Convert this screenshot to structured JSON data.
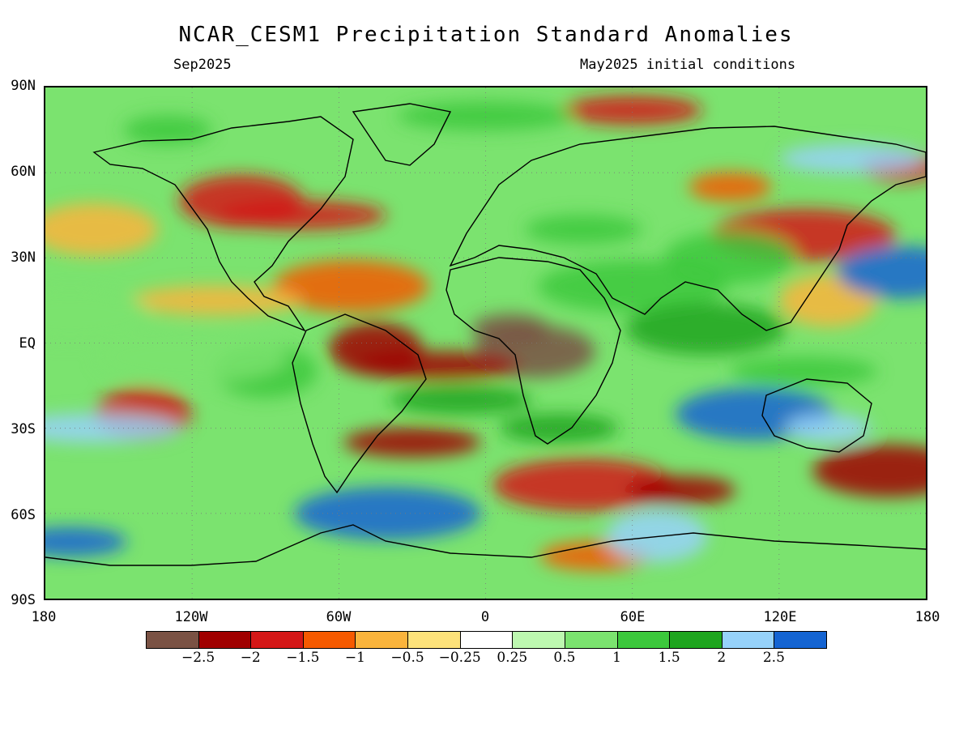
{
  "title": "NCAR_CESM1 Precipitation Standard Anomalies",
  "subtitle_left": "Sep2025",
  "subtitle_right": "May2025 initial conditions",
  "lat_labels": [
    "90N",
    "60N",
    "30N",
    "EQ",
    "30S",
    "60S",
    "90S"
  ],
  "lon_labels": [
    "180",
    "120W",
    "60W",
    "0",
    "60E",
    "120E",
    "180"
  ],
  "colorbar": {
    "colors": [
      "#7a5244",
      "#a00000",
      "#d41717",
      "#f55a00",
      "#fab43c",
      "#fde27a",
      "#ffffff",
      "#bdf8b0",
      "#7be36f",
      "#3cc83c",
      "#1ea51e",
      "#96d2fa",
      "#1464d2"
    ],
    "labels": [
      "−2.5",
      "−2",
      "−1.5",
      "−1",
      "−0.5",
      "−0.25",
      "0.25",
      "0.5",
      "1",
      "1.5",
      "2",
      "2.5"
    ]
  },
  "map": {
    "lat_range": [
      -90,
      90
    ],
    "lon_range": [
      -180,
      180
    ],
    "anomaly_regions": [
      {
        "lon": 10,
        "lat": 5,
        "value": -2.6
      },
      {
        "lon": 20,
        "lat": -3,
        "value": -2.6
      },
      {
        "lon": -20,
        "lat": -8,
        "value": -2.4
      },
      {
        "lon": -45,
        "lat": -2,
        "value": -2.2
      },
      {
        "lon": -30,
        "lat": -35,
        "value": -2.2
      },
      {
        "lon": 40,
        "lat": -50,
        "value": -2.0
      },
      {
        "lon": 80,
        "lat": -52,
        "value": -2.4
      },
      {
        "lon": 165,
        "lat": -45,
        "value": -2.4
      },
      {
        "lon": 170,
        "lat": 62,
        "value": -2.0
      },
      {
        "lon": -100,
        "lat": 50,
        "value": -2.0
      },
      {
        "lon": -75,
        "lat": 45,
        "value": -1.8
      },
      {
        "lon": -140,
        "lat": -25,
        "value": -1.8
      },
      {
        "lon": 60,
        "lat": 82,
        "value": -1.6
      },
      {
        "lon": 130,
        "lat": 38,
        "value": -1.8
      },
      {
        "lon": 45,
        "lat": -75,
        "value": -1.4
      },
      {
        "lon": -55,
        "lat": 20,
        "value": -1.4
      },
      {
        "lon": 100,
        "lat": 55,
        "value": -1.2
      },
      {
        "lon": -160,
        "lat": 40,
        "value": -1.0
      },
      {
        "lon": -110,
        "lat": 15,
        "value": -0.8
      },
      {
        "lon": 140,
        "lat": 15,
        "value": -0.6
      },
      {
        "lon": -10,
        "lat": -20,
        "value": 1.6
      },
      {
        "lon": -40,
        "lat": -60,
        "value": 2.6
      },
      {
        "lon": -170,
        "lat": -70,
        "value": 2.6
      },
      {
        "lon": 110,
        "lat": -25,
        "value": 2.6
      },
      {
        "lon": 140,
        "lat": -30,
        "value": 2.4
      },
      {
        "lon": 170,
        "lat": 25,
        "value": 2.6
      },
      {
        "lon": -160,
        "lat": -30,
        "value": 2.4
      },
      {
        "lon": 70,
        "lat": -68,
        "value": 2.0
      },
      {
        "lon": 150,
        "lat": 65,
        "value": 2.2
      },
      {
        "lon": 60,
        "lat": 20,
        "value": 1.4
      },
      {
        "lon": 40,
        "lat": 40,
        "value": 1.2
      },
      {
        "lon": 90,
        "lat": 5,
        "value": 1.6
      },
      {
        "lon": -130,
        "lat": 75,
        "value": 1.4
      },
      {
        "lon": 100,
        "lat": 30,
        "value": 1.0
      },
      {
        "lon": 0,
        "lat": 80,
        "value": 1.2
      },
      {
        "lon": -90,
        "lat": -10,
        "value": 1.0
      },
      {
        "lon": 130,
        "lat": -10,
        "value": 1.4
      },
      {
        "lon": -120,
        "lat": -5,
        "value": 0.8
      },
      {
        "lon": 30,
        "lat": -30,
        "value": 1.8
      },
      {
        "lon": -170,
        "lat": 10,
        "value": 0.6
      }
    ]
  }
}
